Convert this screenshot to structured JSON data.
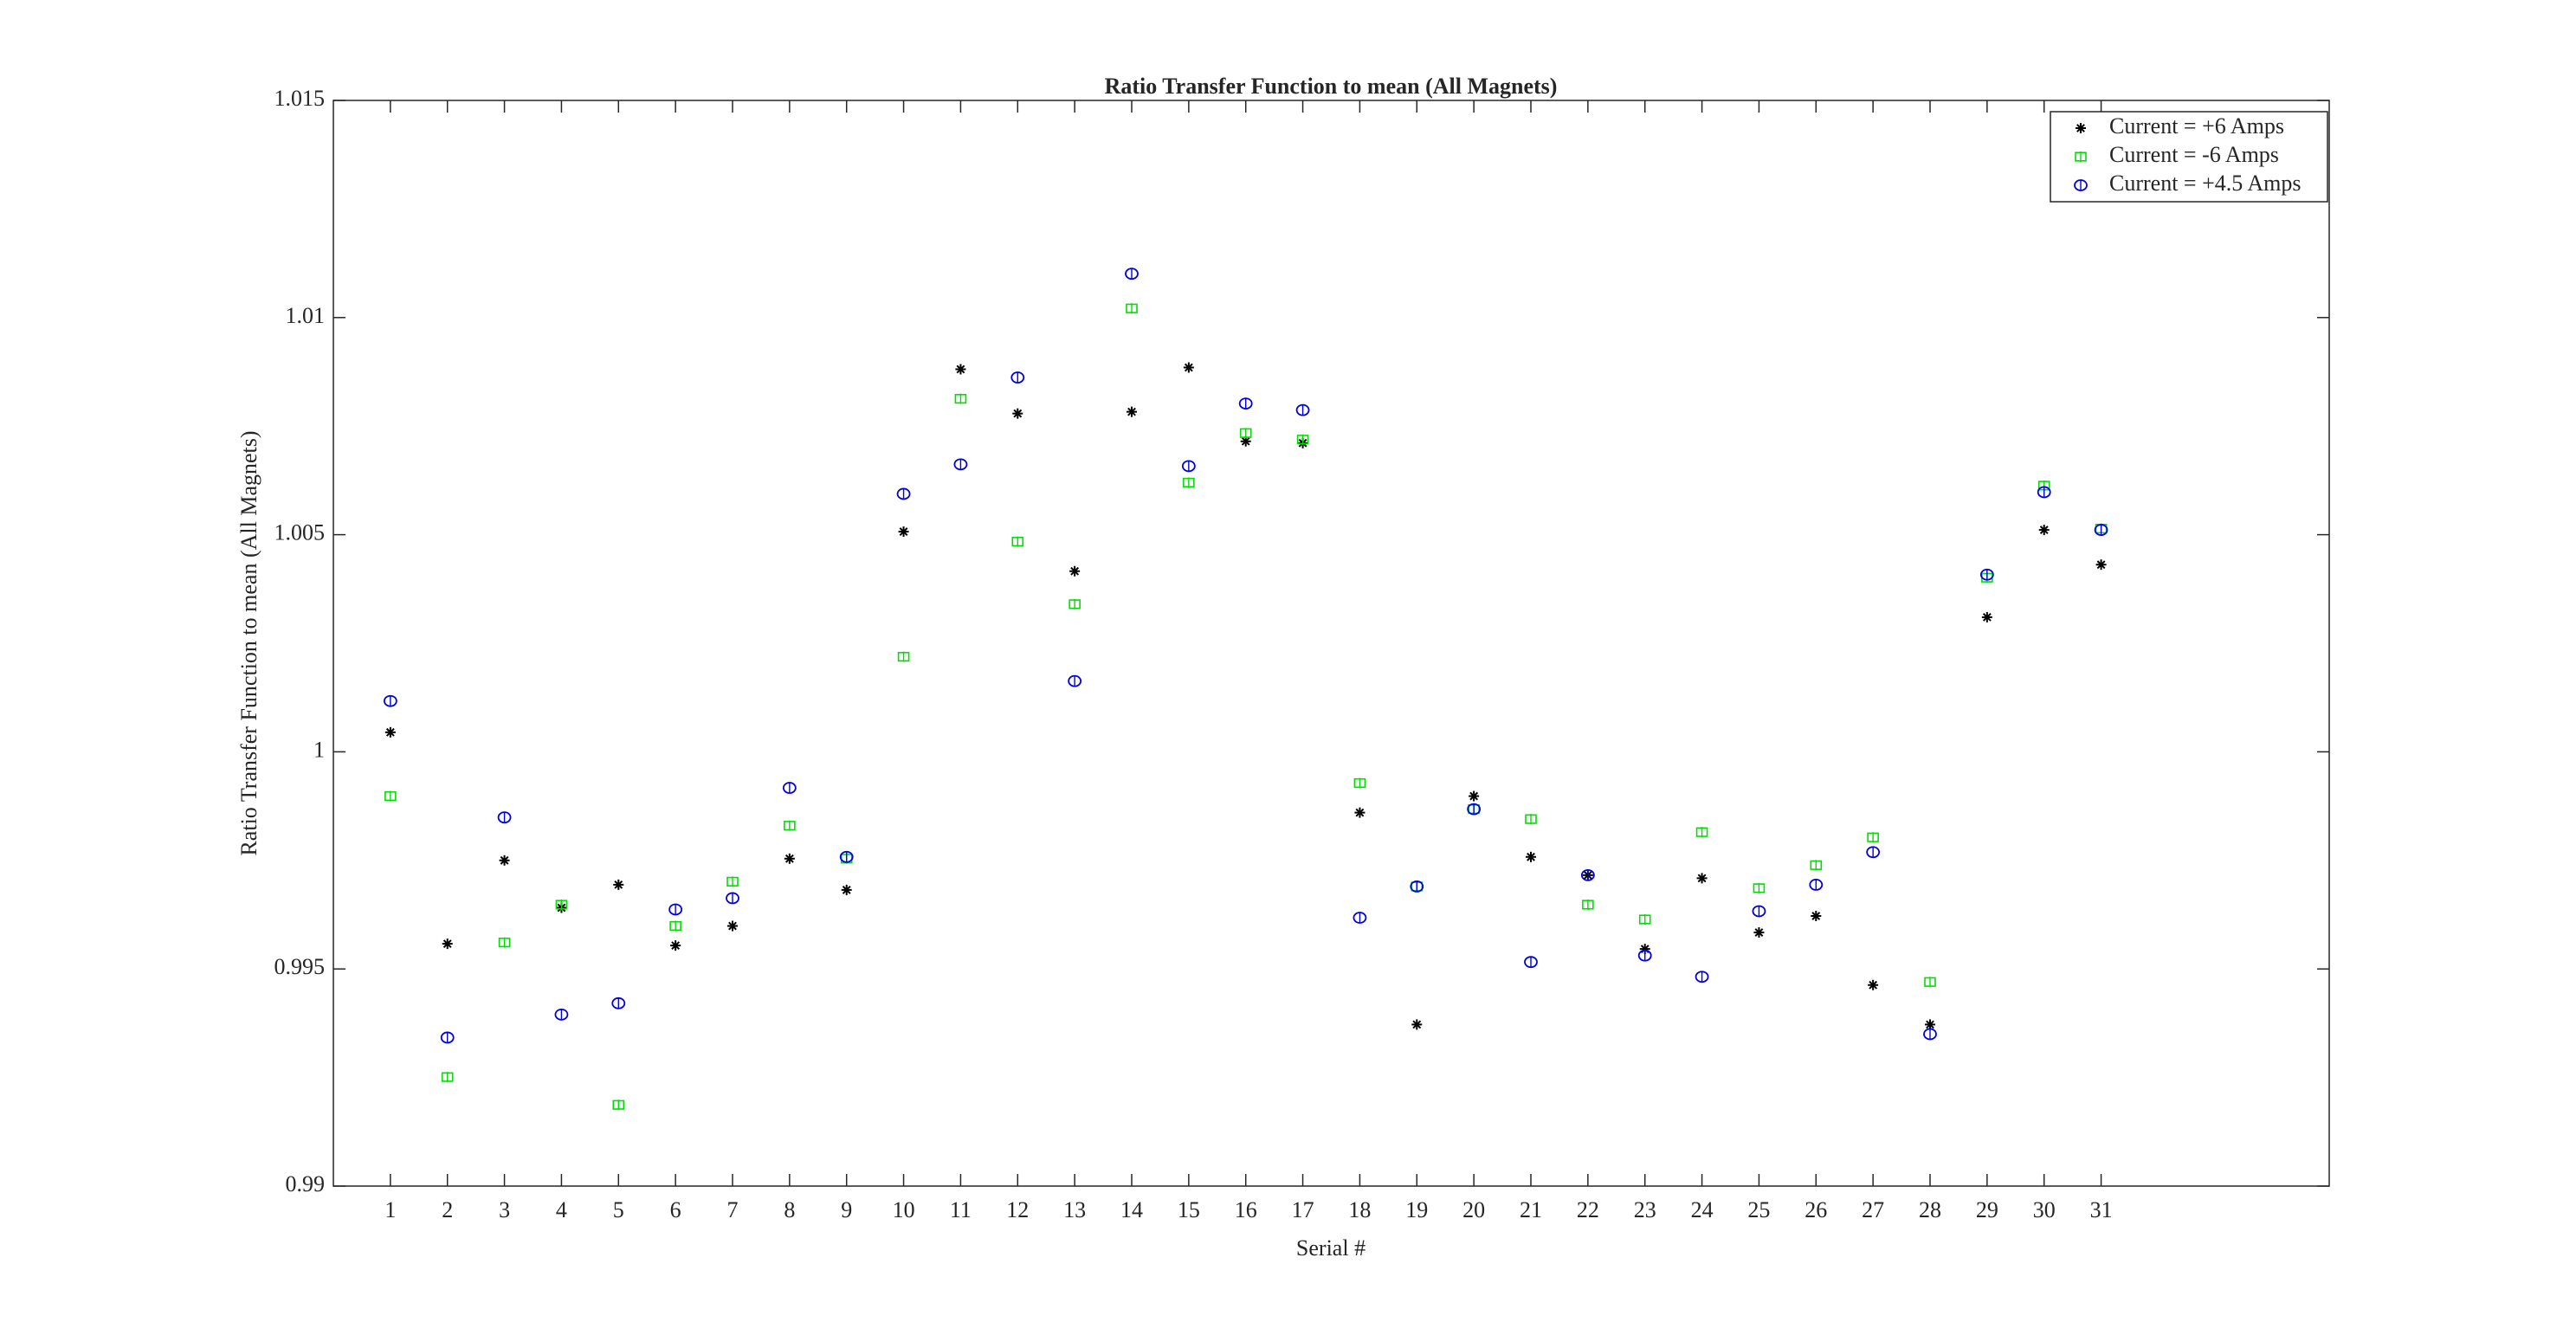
{
  "chart_data": {
    "type": "scatter",
    "title": "Ratio Transfer Function to mean (All Magnets)",
    "x_label": "Serial #",
    "y_label": "Ratio Transfer Function to mean (All Magnets)",
    "x": [
      1,
      2,
      3,
      4,
      5,
      6,
      7,
      8,
      9,
      10,
      11,
      12,
      13,
      14,
      15,
      16,
      17,
      18,
      19,
      20,
      21,
      22,
      23,
      24,
      25,
      26,
      27,
      28,
      29,
      30,
      31
    ],
    "xlim": [
      0,
      35
    ],
    "xticks": [
      1,
      2,
      3,
      4,
      5,
      6,
      7,
      8,
      9,
      10,
      11,
      12,
      13,
      14,
      15,
      16,
      17,
      18,
      19,
      20,
      21,
      22,
      23,
      24,
      25,
      26,
      27,
      28,
      29,
      30,
      31
    ],
    "ylim": [
      0.99,
      1.015
    ],
    "yticks": [
      0.99,
      0.995,
      1,
      1.005,
      1.01,
      1.015
    ],
    "legend": "upper right",
    "grid": false,
    "series": [
      {
        "name": "Current = +6 Amps",
        "color": "#000000",
        "marker": "asterisk",
        "values": [
          1.00045,
          0.99558,
          0.9975,
          0.99641,
          0.99694,
          0.99554,
          0.99599,
          0.99754,
          0.99682,
          1.00507,
          1.00881,
          1.00779,
          1.00416,
          1.00783,
          1.00885,
          1.00715,
          1.00711,
          0.9986,
          0.99372,
          0.99898,
          0.99758,
          0.99716,
          0.99546,
          0.99709,
          0.99584,
          0.99622,
          0.99463,
          0.99372,
          1.0031,
          1.00511,
          1.00431
        ]
      },
      {
        "name": "Current = -6 Amps",
        "color": "#00e000",
        "marker": "square",
        "values": [
          0.99898,
          0.99251,
          0.99561,
          0.99648,
          0.99187,
          0.99599,
          0.99701,
          0.9983,
          0.99754,
          1.00219,
          1.00813,
          1.00484,
          1.0034,
          1.01021,
          1.0062,
          1.00734,
          1.00719,
          0.99928,
          0.9969,
          0.99868,
          0.99845,
          0.99648,
          0.99614,
          0.99815,
          0.99686,
          0.99739,
          0.99803,
          0.9947,
          1.00401,
          1.00613,
          1.00514
        ]
      },
      {
        "name": "Current = +4.5 Amps",
        "color": "#0000e0",
        "marker": "circle",
        "values": [
          1.00117,
          0.99342,
          0.99849,
          0.99395,
          0.99421,
          0.99637,
          0.99663,
          0.99917,
          0.99758,
          1.00594,
          1.00662,
          1.00862,
          1.00163,
          1.01101,
          1.00658,
          1.00802,
          1.00787,
          0.99618,
          0.9969,
          0.99868,
          0.99516,
          0.99716,
          0.99531,
          0.99482,
          0.99633,
          0.99694,
          0.99769,
          0.9935,
          1.00408,
          1.00598,
          1.00511
        ]
      }
    ]
  }
}
